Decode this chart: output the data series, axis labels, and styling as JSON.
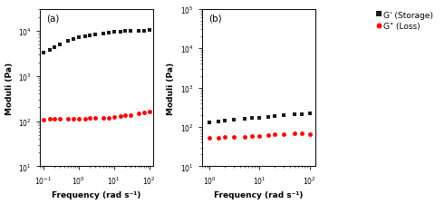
{
  "panel_a": {
    "label": "(a)",
    "storage_x": [
      0.1,
      0.15,
      0.2,
      0.3,
      0.5,
      0.7,
      1.0,
      1.5,
      2.0,
      3.0,
      5.0,
      7.0,
      10.0,
      15.0,
      20.0,
      30.0,
      50.0,
      70.0,
      100.0
    ],
    "storage_y": [
      3200,
      3800,
      4200,
      5000,
      6000,
      6500,
      7000,
      7500,
      7800,
      8200,
      8600,
      9000,
      9200,
      9500,
      9700,
      9800,
      9900,
      10000,
      10200
    ],
    "loss_x": [
      0.1,
      0.15,
      0.2,
      0.3,
      0.5,
      0.7,
      1.0,
      1.5,
      2.0,
      3.0,
      5.0,
      7.0,
      10.0,
      15.0,
      20.0,
      30.0,
      50.0,
      70.0,
      100.0
    ],
    "loss_y": [
      108,
      110,
      110,
      111,
      112,
      112,
      113,
      114,
      115,
      117,
      118,
      120,
      122,
      128,
      132,
      138,
      145,
      152,
      160
    ],
    "xlim": [
      0.08,
      130
    ],
    "ylim": [
      10,
      30000
    ],
    "yticks": [
      10,
      100,
      1000,
      10000
    ],
    "xtick_locs": [
      0.1,
      1.0,
      10.0,
      100.0
    ],
    "xtick_labels": [
      "10⁻¹",
      "10⁰",
      "10¹",
      "10²"
    ],
    "xlabel": "Frequency (rad s⁻¹)",
    "ylabel": "Moduli (Pa)"
  },
  "panel_b": {
    "label": "(b)",
    "storage_x": [
      1.0,
      1.5,
      2.0,
      3.0,
      5.0,
      7.0,
      10.0,
      15.0,
      20.0,
      30.0,
      50.0,
      70.0,
      100.0
    ],
    "storage_y": [
      130,
      140,
      148,
      155,
      160,
      168,
      172,
      178,
      185,
      195,
      205,
      215,
      225
    ],
    "loss_x": [
      1.0,
      1.5,
      2.0,
      3.0,
      5.0,
      7.0,
      10.0,
      15.0,
      20.0,
      30.0,
      50.0,
      70.0,
      100.0
    ],
    "loss_y": [
      52,
      54,
      55,
      55,
      56,
      58,
      60,
      63,
      65,
      67,
      68,
      69,
      67
    ],
    "xlim": [
      0.7,
      130
    ],
    "ylim": [
      10,
      100000
    ],
    "yticks": [
      10,
      100,
      1000,
      10000,
      100000
    ],
    "xtick_locs": [
      1.0,
      10.0,
      100.0
    ],
    "xtick_labels": [
      "10⁰",
      "10¹",
      "10²"
    ],
    "xlabel": "Frequency (rad s⁻¹)",
    "ylabel": "Moduli (Pa)"
  },
  "legend": {
    "storage_label": "G' (Storage)",
    "loss_label": "G\" (Loss)",
    "storage_color": "#1a1a1a",
    "loss_color": "#ff0000"
  },
  "storage_marker": "s",
  "loss_marker": "o",
  "storage_markersize": 3.5,
  "loss_markersize": 3.5,
  "background_color": "#ffffff",
  "fontsize_label": 6.5,
  "fontsize_tick": 5.5,
  "fontsize_panel": 7.5,
  "fontsize_legend": 6.5
}
